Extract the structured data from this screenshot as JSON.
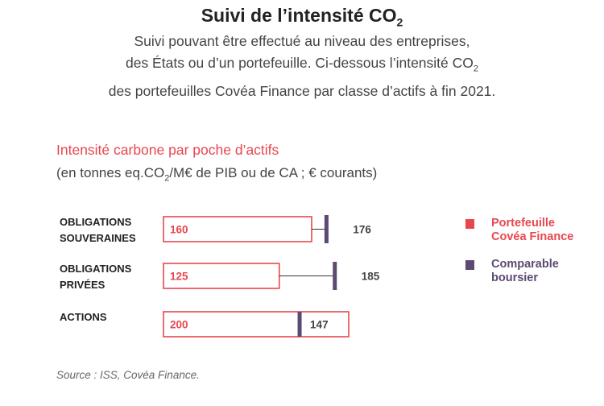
{
  "header": {
    "title_main": "Suivi de l’intensité CO",
    "title_sub": "2",
    "intro_line1": "Suivi pouvant être effectué au niveau des entreprises,",
    "intro_line2_pre": "des États ou d’un portefeuille. Ci-dessous l’intensité CO",
    "intro_line2_sub": "2",
    "intro_line3": "des portefeuilles Covéa Finance par classe d’actifs à fin 2021."
  },
  "chart_data": {
    "type": "bar",
    "title": "Intensité carbone par poche d’actifs",
    "subtitle_pre": "(en tonnes eq.CO",
    "subtitle_sub": "2",
    "subtitle_post": "/M€ de PIB ou de CA ; € courants)",
    "categories": [
      [
        "OBLIGATIONS",
        "SOUVERAINES"
      ],
      [
        "OBLIGATIONS",
        "PRIVÉES"
      ],
      [
        "ACTIONS"
      ]
    ],
    "series": [
      {
        "name": "Portefeuille Covéa Finance",
        "legend_lines": [
          "Portefeuille",
          "Covéa Finance"
        ],
        "values": [
          160,
          125,
          200
        ],
        "color": "#e8474f"
      },
      {
        "name": "Comparable boursier",
        "legend_lines": [
          "Comparable",
          "boursier"
        ],
        "values": [
          176,
          185,
          147
        ],
        "color": "#5c4a72"
      }
    ],
    "xlim": [
      0,
      230
    ],
    "grid": false,
    "legend_position": "right"
  },
  "footer": {
    "source": "Source  : ISS, Covéa Finance."
  }
}
